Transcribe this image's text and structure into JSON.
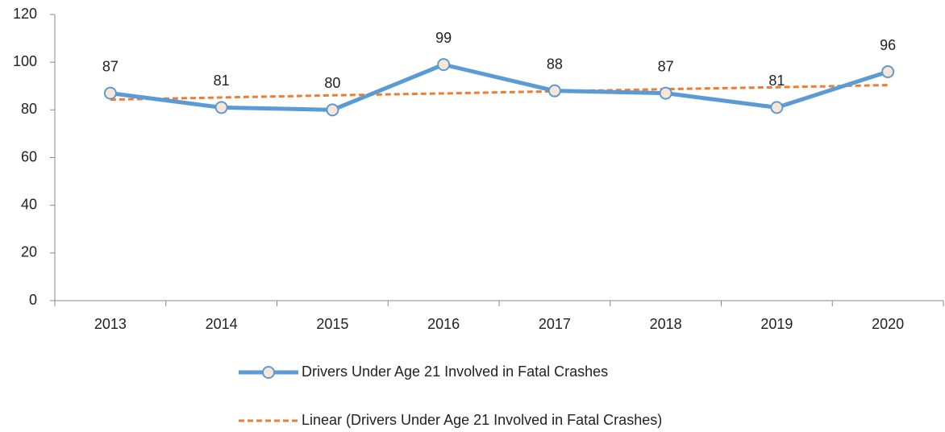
{
  "chart_data": {
    "type": "line",
    "categories": [
      "2013",
      "2014",
      "2015",
      "2016",
      "2017",
      "2018",
      "2019",
      "2020"
    ],
    "series": [
      {
        "name": "Drivers Under Age 21 Involved in Fatal Crashes",
        "color": "#5b9bd5",
        "marker_fill": "#fbe5d6",
        "data_labels": true,
        "values": [
          87,
          81,
          80,
          99,
          88,
          87,
          81,
          96
        ]
      },
      {
        "name": "Linear (Drivers Under Age 21 Involved in Fatal Crashes)",
        "color": "#ed7d31",
        "dashed": true,
        "data_labels": false,
        "values": [
          84.3,
          85.2,
          86.1,
          86.9,
          87.8,
          88.7,
          89.5,
          90.4
        ]
      }
    ],
    "ylim": [
      0,
      120
    ],
    "yticks": [
      0,
      20,
      40,
      60,
      80,
      100,
      120
    ],
    "grid": false,
    "legend": "bottom"
  }
}
